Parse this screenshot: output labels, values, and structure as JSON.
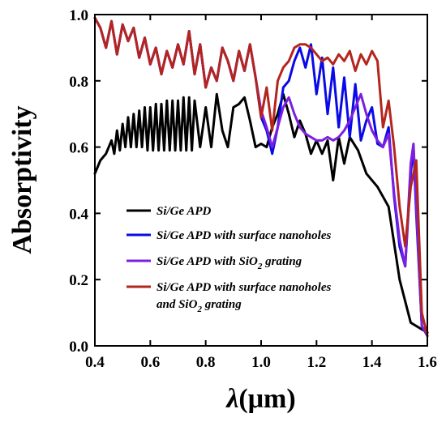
{
  "chart_data": {
    "type": "line",
    "xlabel_symbol": "λ",
    "xlabel_unit": "(μm)",
    "ylabel": "Absorptivity",
    "xlim": [
      0.4,
      1.6
    ],
    "ylim": [
      0.0,
      1.0
    ],
    "xticks": [
      "0.4",
      "0.6",
      "0.8",
      "1.0",
      "1.2",
      "1.4",
      "1.6"
    ],
    "yticks": [
      "0.0",
      "0.2",
      "0.4",
      "0.6",
      "0.8",
      "1.0"
    ],
    "legend_position": "lower-left",
    "series": [
      {
        "name": "Si/Ge APD",
        "color": "#000000",
        "x": [
          0.4,
          0.42,
          0.44,
          0.46,
          0.47,
          0.48,
          0.49,
          0.5,
          0.51,
          0.52,
          0.53,
          0.54,
          0.55,
          0.56,
          0.57,
          0.58,
          0.59,
          0.6,
          0.61,
          0.62,
          0.63,
          0.64,
          0.65,
          0.66,
          0.67,
          0.68,
          0.69,
          0.7,
          0.71,
          0.72,
          0.73,
          0.74,
          0.75,
          0.76,
          0.78,
          0.8,
          0.82,
          0.84,
          0.86,
          0.88,
          0.9,
          0.92,
          0.94,
          0.96,
          0.98,
          1.0,
          1.02,
          1.04,
          1.06,
          1.08,
          1.1,
          1.12,
          1.14,
          1.16,
          1.18,
          1.2,
          1.22,
          1.24,
          1.26,
          1.28,
          1.3,
          1.32,
          1.35,
          1.38,
          1.42,
          1.46,
          1.5,
          1.54,
          1.58,
          1.6
        ],
        "y": [
          0.52,
          0.56,
          0.58,
          0.62,
          0.58,
          0.65,
          0.59,
          0.67,
          0.6,
          0.69,
          0.6,
          0.7,
          0.6,
          0.71,
          0.6,
          0.72,
          0.59,
          0.72,
          0.59,
          0.73,
          0.59,
          0.73,
          0.59,
          0.74,
          0.59,
          0.74,
          0.59,
          0.74,
          0.59,
          0.75,
          0.59,
          0.75,
          0.59,
          0.74,
          0.6,
          0.72,
          0.6,
          0.76,
          0.65,
          0.6,
          0.72,
          0.73,
          0.75,
          0.68,
          0.6,
          0.61,
          0.6,
          0.66,
          0.7,
          0.76,
          0.7,
          0.63,
          0.68,
          0.64,
          0.58,
          0.62,
          0.58,
          0.62,
          0.5,
          0.63,
          0.55,
          0.63,
          0.59,
          0.52,
          0.48,
          0.42,
          0.2,
          0.07,
          0.05,
          0.04
        ]
      },
      {
        "name": "Si/Ge APD with surface nanoholes",
        "color": "#0a0ae6",
        "x": [
          0.4,
          0.42,
          0.44,
          0.46,
          0.48,
          0.5,
          0.52,
          0.54,
          0.56,
          0.58,
          0.6,
          0.62,
          0.64,
          0.66,
          0.68,
          0.7,
          0.72,
          0.74,
          0.76,
          0.78,
          0.8,
          0.82,
          0.84,
          0.86,
          0.88,
          0.9,
          0.92,
          0.94,
          0.96,
          0.98,
          1.0,
          1.02,
          1.04,
          1.06,
          1.08,
          1.1,
          1.12,
          1.14,
          1.16,
          1.18,
          1.2,
          1.22,
          1.24,
          1.26,
          1.28,
          1.3,
          1.32,
          1.34,
          1.36,
          1.38,
          1.4,
          1.42,
          1.44,
          1.46,
          1.48,
          1.5,
          1.52,
          1.54,
          1.55,
          1.56,
          1.58,
          1.6
        ],
        "y": [
          0.99,
          0.96,
          0.9,
          0.98,
          0.88,
          0.97,
          0.92,
          0.96,
          0.87,
          0.93,
          0.85,
          0.9,
          0.82,
          0.89,
          0.84,
          0.91,
          0.85,
          0.95,
          0.82,
          0.91,
          0.78,
          0.84,
          0.8,
          0.9,
          0.86,
          0.8,
          0.89,
          0.83,
          0.91,
          0.81,
          0.69,
          0.65,
          0.58,
          0.66,
          0.78,
          0.8,
          0.86,
          0.9,
          0.84,
          0.91,
          0.76,
          0.87,
          0.7,
          0.84,
          0.66,
          0.81,
          0.63,
          0.79,
          0.62,
          0.68,
          0.72,
          0.61,
          0.6,
          0.66,
          0.45,
          0.3,
          0.24,
          0.52,
          0.6,
          0.4,
          0.06,
          0.03
        ]
      },
      {
        "name": "Si/Ge APD with SiO₂ grating",
        "color": "#7b1fe0",
        "x": [
          0.4,
          0.42,
          0.44,
          0.46,
          0.48,
          0.5,
          0.52,
          0.54,
          0.56,
          0.58,
          0.6,
          0.62,
          0.64,
          0.66,
          0.68,
          0.7,
          0.72,
          0.74,
          0.76,
          0.78,
          0.8,
          0.82,
          0.84,
          0.86,
          0.88,
          0.9,
          0.92,
          0.94,
          0.96,
          0.98,
          1.0,
          1.02,
          1.04,
          1.06,
          1.08,
          1.1,
          1.12,
          1.14,
          1.16,
          1.18,
          1.2,
          1.22,
          1.24,
          1.26,
          1.28,
          1.3,
          1.32,
          1.34,
          1.36,
          1.38,
          1.4,
          1.42,
          1.44,
          1.46,
          1.48,
          1.5,
          1.52,
          1.54,
          1.55,
          1.56,
          1.58,
          1.6
        ],
        "y": [
          0.99,
          0.96,
          0.9,
          0.98,
          0.88,
          0.97,
          0.92,
          0.96,
          0.87,
          0.93,
          0.85,
          0.9,
          0.82,
          0.89,
          0.84,
          0.91,
          0.85,
          0.95,
          0.82,
          0.91,
          0.78,
          0.84,
          0.8,
          0.9,
          0.86,
          0.8,
          0.89,
          0.83,
          0.91,
          0.81,
          0.71,
          0.66,
          0.6,
          0.66,
          0.72,
          0.75,
          0.7,
          0.66,
          0.64,
          0.63,
          0.62,
          0.62,
          0.63,
          0.62,
          0.63,
          0.65,
          0.68,
          0.72,
          0.76,
          0.7,
          0.65,
          0.62,
          0.6,
          0.64,
          0.46,
          0.32,
          0.24,
          0.55,
          0.61,
          0.42,
          0.06,
          0.03
        ]
      },
      {
        "name": "Si/Ge APD with surface nanoholes and SiO₂ grating",
        "color": "#b3261e",
        "x": [
          0.4,
          0.42,
          0.44,
          0.46,
          0.48,
          0.5,
          0.52,
          0.54,
          0.56,
          0.58,
          0.6,
          0.62,
          0.64,
          0.66,
          0.68,
          0.7,
          0.72,
          0.74,
          0.76,
          0.78,
          0.8,
          0.82,
          0.84,
          0.86,
          0.88,
          0.9,
          0.92,
          0.94,
          0.96,
          0.98,
          1.0,
          1.02,
          1.04,
          1.06,
          1.08,
          1.1,
          1.12,
          1.14,
          1.16,
          1.18,
          1.2,
          1.22,
          1.24,
          1.26,
          1.28,
          1.3,
          1.32,
          1.34,
          1.36,
          1.38,
          1.4,
          1.42,
          1.44,
          1.46,
          1.48,
          1.5,
          1.52,
          1.54,
          1.56,
          1.58,
          1.6
        ],
        "y": [
          0.99,
          0.96,
          0.9,
          0.98,
          0.88,
          0.97,
          0.92,
          0.96,
          0.87,
          0.93,
          0.85,
          0.9,
          0.82,
          0.89,
          0.84,
          0.91,
          0.85,
          0.95,
          0.82,
          0.91,
          0.78,
          0.84,
          0.8,
          0.9,
          0.86,
          0.8,
          0.89,
          0.83,
          0.91,
          0.81,
          0.69,
          0.78,
          0.65,
          0.8,
          0.84,
          0.86,
          0.9,
          0.91,
          0.91,
          0.9,
          0.88,
          0.86,
          0.87,
          0.85,
          0.88,
          0.86,
          0.89,
          0.83,
          0.88,
          0.85,
          0.89,
          0.86,
          0.66,
          0.74,
          0.6,
          0.42,
          0.3,
          0.48,
          0.56,
          0.1,
          0.03
        ]
      }
    ]
  },
  "legend": {
    "entries": [
      {
        "line1": "Si/Ge APD",
        "color": "#000000"
      },
      {
        "line1": "Si/Ge APD with surface nanoholes",
        "color": "#0a0ae6"
      },
      {
        "line1_pre": "Si/Ge APD with SiO",
        "sub": "2",
        "line1_post": " grating",
        "color": "#7b1fe0"
      },
      {
        "line1": "Si/Ge APD with surface nanoholes",
        "line2_pre": "and SiO",
        "sub": "2",
        "line2_post": " grating",
        "color": "#b3261e"
      }
    ]
  }
}
